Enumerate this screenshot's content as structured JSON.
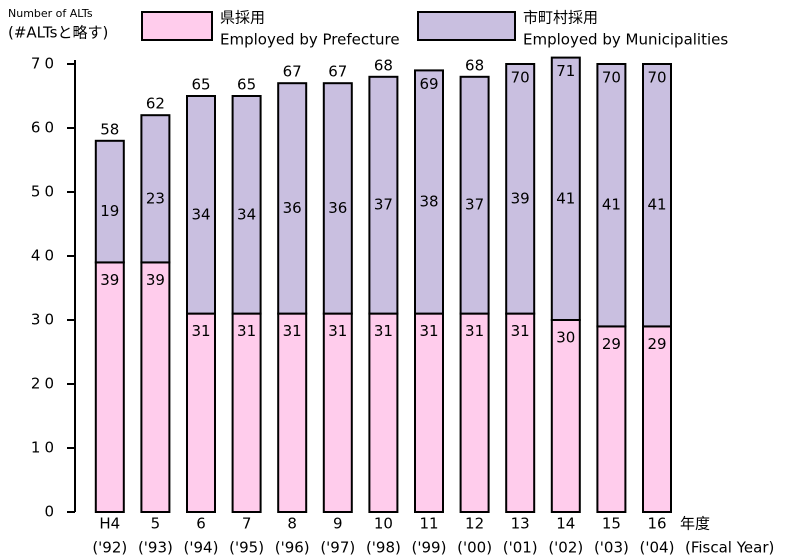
{
  "chart_data": {
    "type": "stacked_bar",
    "y_label_top": "Number of ALTs",
    "y_label_bottom": "(#ALTsと略す)",
    "x_label": "年度",
    "x_label_sub": "(Fiscal Year)",
    "categories": [
      "H4",
      "5",
      "6",
      "7",
      "8",
      "9",
      "10",
      "11",
      "12",
      "13",
      "14",
      "15",
      "16"
    ],
    "category_years": [
      "('92)",
      "('93)",
      "('94)",
      "('95)",
      "('96)",
      "('97)",
      "('98)",
      "('99)",
      "('00)",
      "('01)",
      "('02)",
      "('03)",
      "('04)"
    ],
    "series": [
      {
        "name": "県採用",
        "name_en": "Employed by Prefecture",
        "color": "#ffccec",
        "values": [
          39,
          39,
          31,
          31,
          31,
          31,
          31,
          31,
          31,
          31,
          30,
          29,
          29
        ]
      },
      {
        "name": "市町村採用",
        "name_en": "Employed by Municipalities",
        "color": "#c9bfe0",
        "values": [
          19,
          23,
          34,
          34,
          36,
          36,
          37,
          38,
          37,
          39,
          41,
          41,
          41
        ]
      }
    ],
    "totals": [
      58,
      62,
      65,
      65,
      67,
      67,
      68,
      69,
      68,
      70,
      71,
      70,
      70
    ],
    "ylim": [
      0,
      70
    ],
    "yticks": [
      0,
      10,
      20,
      30,
      40,
      50,
      60,
      70
    ]
  }
}
